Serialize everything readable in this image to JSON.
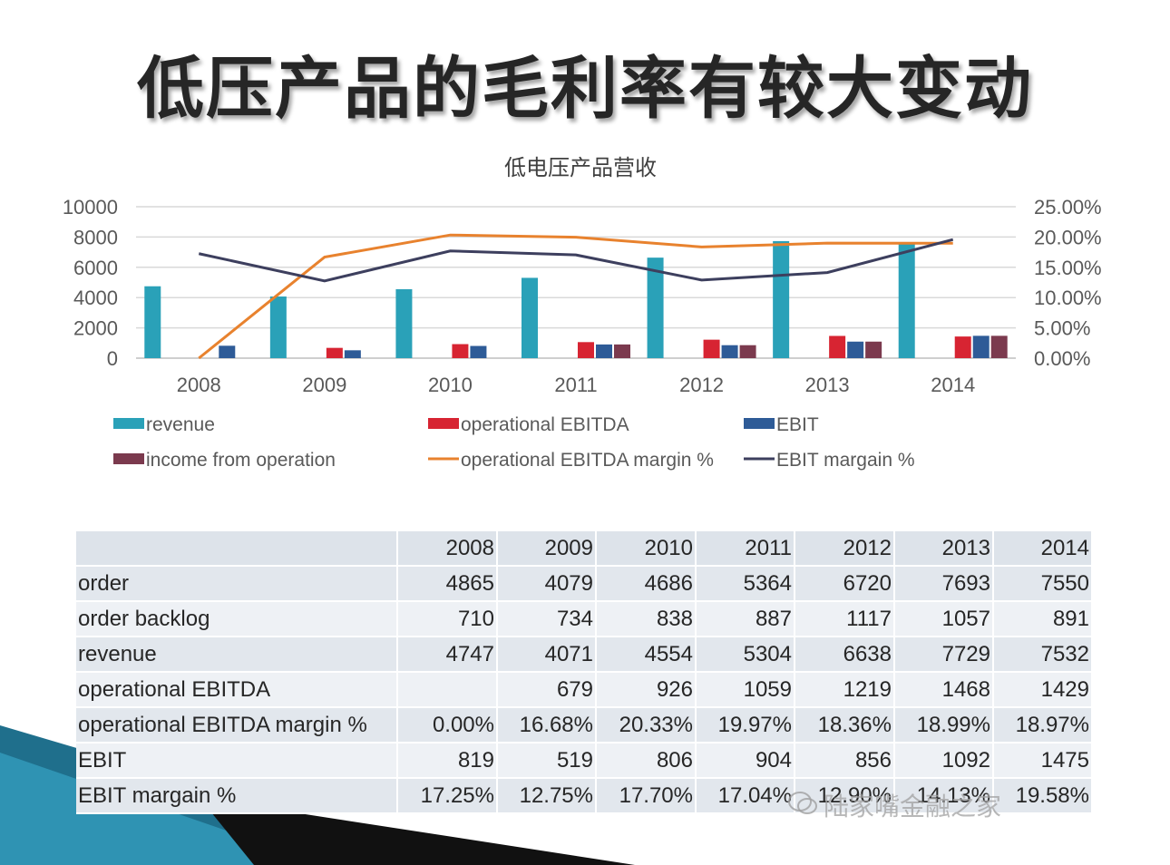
{
  "slide": {
    "title": "低压产品的毛利率有较大变动",
    "watermark": "陆家嘴金融之家"
  },
  "chart_data": {
    "type": "bar",
    "title": "低电压产品营收",
    "categories": [
      "2008",
      "2009",
      "2010",
      "2011",
      "2012",
      "2013",
      "2014"
    ],
    "y_left": {
      "ticks": [
        "10000",
        "8000",
        "6000",
        "4000",
        "2000",
        "0"
      ],
      "ylim": [
        0,
        10000
      ]
    },
    "y_right": {
      "ticks": [
        "25.00%",
        "20.00%",
        "15.00%",
        "10.00%",
        "5.00%",
        "0.00%"
      ],
      "ylim": [
        0,
        25
      ]
    },
    "grid": true,
    "legend_position": "bottom",
    "bar_series": [
      {
        "name": "revenue",
        "color": "#2aa1b8",
        "values": [
          4747,
          4071,
          4554,
          5304,
          6638,
          7729,
          7532
        ]
      },
      {
        "name": "operational EBITDA",
        "color": "#d72432",
        "values": [
          null,
          679,
          926,
          1059,
          1219,
          1468,
          1429
        ]
      },
      {
        "name": "EBIT",
        "color": "#2e5b97",
        "values": [
          819,
          519,
          806,
          904,
          856,
          1092,
          1475
        ]
      },
      {
        "name": "income from operation",
        "color": "#7b3a4e",
        "values": [
          null,
          null,
          null,
          904,
          856,
          1092,
          1475
        ]
      }
    ],
    "line_series": [
      {
        "name": "operational EBITDA margin %",
        "color": "#e8822e",
        "values": [
          0.0,
          16.68,
          20.33,
          19.97,
          18.36,
          18.99,
          18.97
        ]
      },
      {
        "name": "EBIT margain %",
        "color": "#3d3f5e",
        "values": [
          17.25,
          12.75,
          17.7,
          17.04,
          12.9,
          14.13,
          19.58
        ]
      }
    ]
  },
  "table": {
    "header": [
      "",
      "2008",
      "2009",
      "2010",
      "2011",
      "2012",
      "2013",
      "2014"
    ],
    "rows": [
      [
        "order",
        "4865",
        "4079",
        "4686",
        "5364",
        "6720",
        "7693",
        "7550"
      ],
      [
        "order backlog",
        "710",
        "734",
        "838",
        "887",
        "1117",
        "1057",
        "891"
      ],
      [
        "revenue",
        "4747",
        "4071",
        "4554",
        "5304",
        "6638",
        "7729",
        "7532"
      ],
      [
        "operational EBITDA",
        "",
        "679",
        "926",
        "1059",
        "1219",
        "1468",
        "1429"
      ],
      [
        "operational EBITDA margin %",
        "0.00%",
        "16.68%",
        "20.33%",
        "19.97%",
        "18.36%",
        "18.99%",
        "18.97%"
      ],
      [
        "EBIT",
        "819",
        "519",
        "806",
        "904",
        "856",
        "1092",
        "1475"
      ],
      [
        "EBIT margain %",
        "17.25%",
        "12.75%",
        "17.70%",
        "17.04%",
        "12.90%",
        "14.13%",
        "19.58%"
      ]
    ]
  }
}
